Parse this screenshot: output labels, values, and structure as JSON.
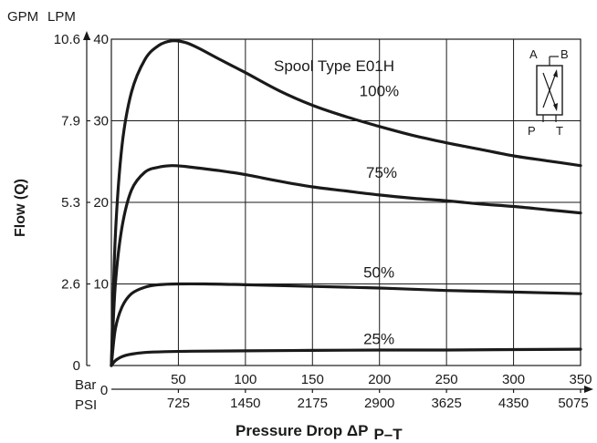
{
  "chart_data": {
    "type": "line",
    "title": "Spool Type E01H",
    "xlabel": "Pressure Drop ΔP",
    "xlabel_sub": "P–T",
    "ylabel": "Flow (Q)",
    "x_unit_primary": "Bar",
    "x_unit_secondary": "PSI",
    "y_unit_primary": "LPM",
    "y_unit_secondary": "GPM",
    "xlim": [
      0,
      350
    ],
    "ylim": [
      0,
      40
    ],
    "grid": true,
    "x_ticks_bar": [
      "0",
      "50",
      "100",
      "150",
      "200",
      "250",
      "300",
      "350"
    ],
    "x_ticks_psi": [
      "725",
      "1450",
      "2175",
      "2900",
      "3625",
      "4350",
      "5075"
    ],
    "y_ticks_lpm": [
      "10",
      "20",
      "30",
      "40"
    ],
    "y_ticks_gpm": [
      "0",
      "2.6",
      "5.3",
      "7.9",
      "10.6"
    ],
    "series": [
      {
        "name": "100%",
        "x": [
          0,
          3,
          8,
          15,
          25,
          35,
          45,
          55,
          65,
          80,
          100,
          125,
          150,
          175,
          200,
          225,
          250,
          275,
          300,
          325,
          350
        ],
        "values": [
          0,
          16,
          27,
          33.5,
          37.5,
          39.2,
          39.8,
          39.6,
          38.9,
          37.6,
          35.9,
          33.7,
          31.9,
          30.5,
          29.3,
          28.2,
          27.3,
          26.5,
          25.7,
          25.1,
          24.5
        ]
      },
      {
        "name": "75%",
        "x": [
          0,
          3,
          8,
          15,
          25,
          35,
          45,
          55,
          65,
          80,
          100,
          125,
          150,
          175,
          200,
          225,
          250,
          275,
          300,
          325,
          350
        ],
        "values": [
          0,
          10,
          17,
          21.5,
          23.7,
          24.3,
          24.5,
          24.4,
          24.2,
          23.9,
          23.4,
          22.6,
          21.9,
          21.4,
          20.9,
          20.5,
          20.2,
          19.8,
          19.5,
          19.1,
          18.7
        ]
      },
      {
        "name": "50%",
        "x": [
          0,
          3,
          8,
          15,
          25,
          35,
          50,
          70,
          100,
          150,
          200,
          250,
          300,
          350
        ],
        "values": [
          0,
          4.5,
          7.2,
          8.8,
          9.6,
          9.9,
          10.0,
          10.0,
          9.9,
          9.7,
          9.5,
          9.2,
          9.0,
          8.8
        ]
      },
      {
        "name": "25%",
        "x": [
          0,
          3,
          8,
          15,
          25,
          40,
          60,
          100,
          150,
          200,
          250,
          300,
          350
        ],
        "values": [
          0,
          0.6,
          1.1,
          1.4,
          1.6,
          1.7,
          1.75,
          1.8,
          1.85,
          1.9,
          1.9,
          1.95,
          2.0
        ]
      }
    ],
    "curve_label_positions": [
      {
        "name": "100%",
        "x": 185,
        "y": 33
      },
      {
        "name": "75%",
        "x": 190,
        "y": 23
      },
      {
        "name": "50%",
        "x": 188,
        "y": 10.8
      },
      {
        "name": "25%",
        "x": 188,
        "y": 2.6
      }
    ]
  },
  "valve_symbol": {
    "port_a": "A",
    "port_b": "B",
    "port_p": "P",
    "port_t": "T"
  }
}
